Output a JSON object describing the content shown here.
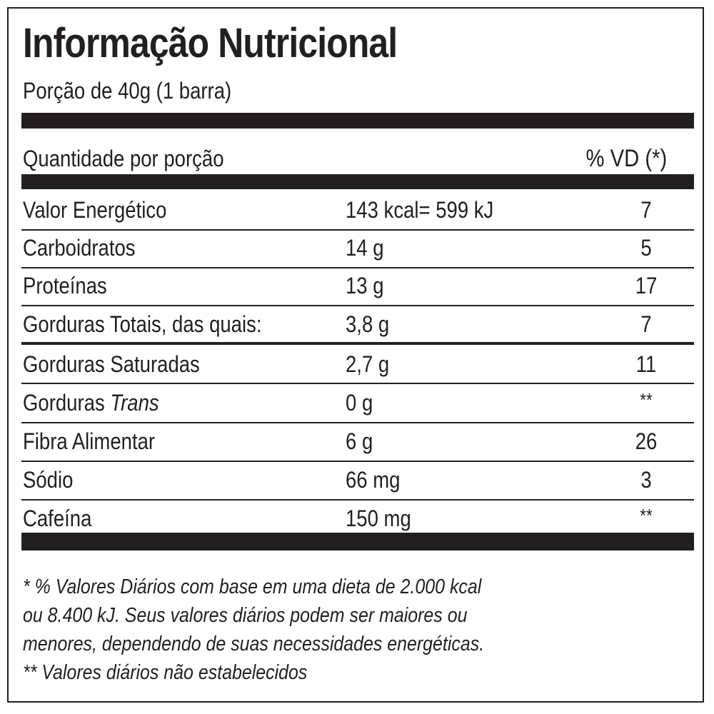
{
  "title": "Informação Nutricional",
  "serving": "Porção de 40g (1 barra)",
  "header": {
    "quantity_label": "Quantidade por porção",
    "dv_label": "% VD (*)"
  },
  "rows": [
    {
      "name": "Valor Energético",
      "amount": "143 kcal= 599 kJ",
      "dv": "7"
    },
    {
      "name": "Carboidratos",
      "amount": "14 g",
      "dv": "5"
    },
    {
      "name": "Proteínas",
      "amount": "13 g",
      "dv": "17"
    },
    {
      "name": "Gorduras Totais, das quais:",
      "amount": "3,8 g",
      "dv": "7"
    },
    {
      "name": "Gorduras Saturadas",
      "amount": "2,7 g",
      "dv": "11"
    },
    {
      "name_prefix": "Gorduras ",
      "name_italic": "Trans",
      "amount": "0 g",
      "dv": "**"
    },
    {
      "name": "Fibra Alimentar",
      "amount": "6 g",
      "dv": "26"
    },
    {
      "name": "Sódio",
      "amount": "66 mg",
      "dv": "3"
    },
    {
      "name": "Cafeína",
      "amount": "150 mg",
      "dv": "**"
    }
  ],
  "footnotes": [
    "* % Valores Diários com base em uma dieta de 2.000 kcal",
    "ou 8.400 kJ. Seus valores diários podem ser maiores ou",
    "menores, dependendo de suas necessidades energéticas.",
    "** Valores diários não estabelecidos"
  ]
}
